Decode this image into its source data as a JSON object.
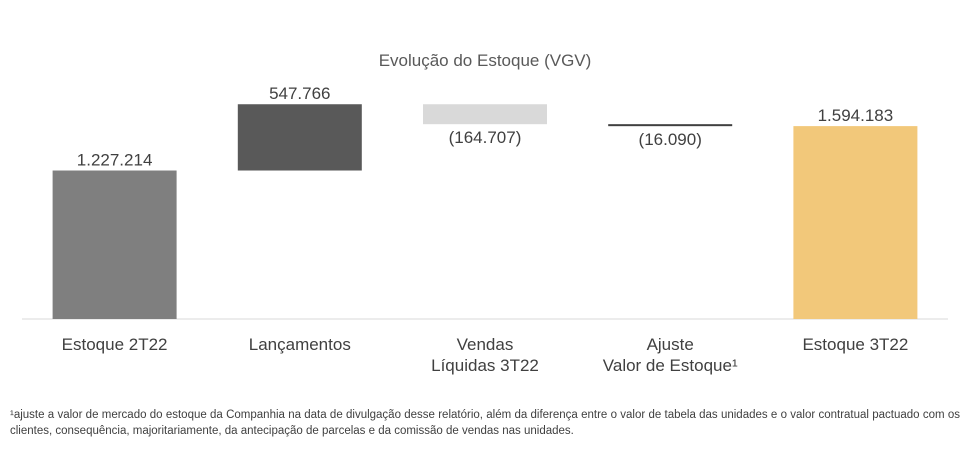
{
  "chart_data": {
    "type": "bar",
    "title": "Evolução do Estoque (VGV)",
    "categories": [
      [
        "Estoque 2T22"
      ],
      [
        "Lançamentos"
      ],
      [
        "Vendas",
        "Líquidas 3T22"
      ],
      [
        "Ajuste",
        "Valor de Estoque¹"
      ],
      [
        "Estoque 3T22"
      ]
    ],
    "values": [
      1227214,
      547766,
      -164707,
      -16090,
      1594183
    ],
    "data_labels": [
      "1.227.214",
      "547.766",
      "(164.707)",
      "(16.090)",
      "1.594.183"
    ],
    "kinds": [
      "total",
      "delta",
      "delta",
      "delta",
      "total"
    ],
    "colors": [
      "#7f7f7f",
      "#595959",
      "#d9d9d9",
      "#404040",
      "#f2c87a"
    ],
    "ylim": [
      0,
      1810000
    ],
    "grid": false,
    "legend": "none",
    "xlabel": "",
    "ylabel": ""
  },
  "footnote": "¹ajuste a valor de mercado do estoque da Companhia na data de divulgação desse relatório, além da diferença entre o valor de tabela das unidades e o valor contratual pactuado com os clientes, consequência, majoritariamente, da antecipação de parcelas e da comissão de vendas nas unidades."
}
